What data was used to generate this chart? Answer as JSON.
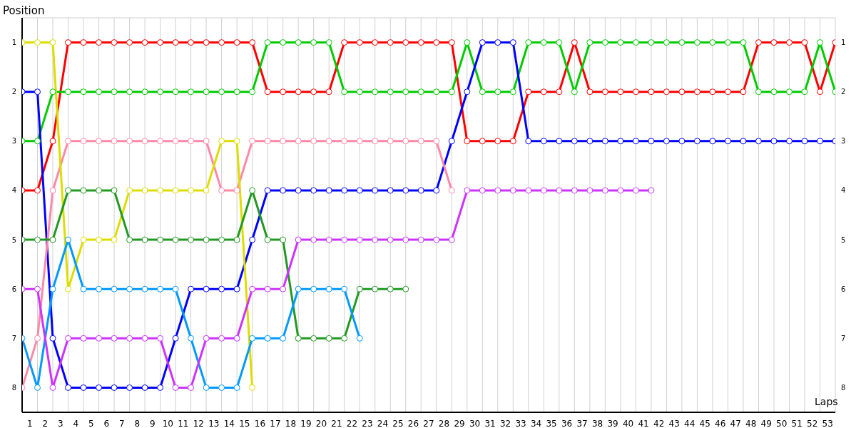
{
  "chart_data": {
    "type": "line",
    "xlabel": "Laps",
    "ylabel": "Position",
    "marker": "circle",
    "line_style": "solid",
    "grid": true,
    "x": [
      0,
      1,
      2,
      3,
      4,
      5,
      6,
      7,
      8,
      9,
      10,
      11,
      12,
      13,
      14,
      15,
      16,
      17,
      18,
      19,
      20,
      21,
      22,
      23,
      24,
      25,
      26,
      27,
      28,
      29,
      30,
      31,
      32,
      33,
      34,
      35,
      36,
      37,
      38,
      39,
      40,
      41,
      42,
      43,
      44,
      45,
      46,
      47,
      48,
      49,
      50,
      51,
      52,
      53
    ],
    "xlim": [
      0,
      53
    ],
    "xticks": [
      {
        "value": 1,
        "label": null
      },
      {
        "value": 2,
        "label": null
      },
      {
        "value": 3,
        "label": null
      },
      {
        "value": 4,
        "label": null
      },
      {
        "value": 5,
        "label": null
      },
      {
        "value": 6,
        "label": null
      },
      {
        "value": 7,
        "label": null
      },
      {
        "value": 8,
        "label": null
      },
      {
        "value": 9,
        "label": null
      },
      {
        "value": 10,
        "label": null
      },
      {
        "value": 11,
        "label": null
      },
      {
        "value": 12,
        "label": null
      },
      {
        "value": 13,
        "label": null
      },
      {
        "value": 14,
        "label": null
      },
      {
        "value": 15,
        "label": null
      },
      {
        "value": 16,
        "label": null
      },
      {
        "value": 17,
        "label": null
      },
      {
        "value": 18,
        "label": null
      },
      {
        "value": 19,
        "label": null
      },
      {
        "value": 20,
        "label": null
      },
      {
        "value": 21,
        "label": null
      },
      {
        "value": 22,
        "label": null
      },
      {
        "value": 23,
        "label": null
      },
      {
        "value": 24,
        "label": null
      },
      {
        "value": 25,
        "label": null
      },
      {
        "value": 26,
        "label": null
      },
      {
        "value": 27,
        "label": null
      },
      {
        "value": 28,
        "label": null
      },
      {
        "value": 29,
        "label": null
      },
      {
        "value": 30,
        "label": null
      },
      {
        "value": 31,
        "label": null
      },
      {
        "value": 32,
        "label": null
      },
      {
        "value": 33,
        "label": null
      },
      {
        "value": 34,
        "label": null
      },
      {
        "value": 35,
        "label": null
      },
      {
        "value": 36,
        "label": null
      },
      {
        "value": 37,
        "label": null
      },
      {
        "value": 38,
        "label": null
      },
      {
        "value": 39,
        "label": null
      },
      {
        "value": 40,
        "label": null
      },
      {
        "value": 41,
        "label": null
      },
      {
        "value": 42,
        "label": null
      },
      {
        "value": 43,
        "label": null
      },
      {
        "value": 44,
        "label": null
      },
      {
        "value": 45,
        "label": null
      },
      {
        "value": 46,
        "label": null
      },
      {
        "value": 47,
        "label": null
      },
      {
        "value": 48,
        "label": null
      },
      {
        "value": 49,
        "label": null
      },
      {
        "value": 50,
        "label": null
      },
      {
        "value": 51,
        "label": null
      },
      {
        "value": 52,
        "label": null
      },
      {
        "value": 53,
        "label": null
      },
      {
        "value": 0.5,
        "label": "1"
      },
      {
        "value": 1.5,
        "label": "2"
      },
      {
        "value": 2.5,
        "label": "3"
      },
      {
        "value": 3.5,
        "label": "4"
      },
      {
        "value": 4.5,
        "label": "5"
      },
      {
        "value": 5.5,
        "label": "6"
      },
      {
        "value": 6.5,
        "label": "7"
      },
      {
        "value": 7.5,
        "label": "8"
      },
      {
        "value": 8.5,
        "label": "9"
      },
      {
        "value": 9.5,
        "label": "10"
      },
      {
        "value": 10.5,
        "label": "11"
      },
      {
        "value": 11.5,
        "label": "12"
      },
      {
        "value": 12.5,
        "label": "13"
      },
      {
        "value": 13.5,
        "label": "14"
      },
      {
        "value": 14.5,
        "label": "15"
      },
      {
        "value": 15.5,
        "label": "16"
      },
      {
        "value": 16.5,
        "label": "17"
      },
      {
        "value": 17.5,
        "label": "18"
      },
      {
        "value": 18.5,
        "label": "19"
      },
      {
        "value": 19.5,
        "label": "20"
      },
      {
        "value": 20.5,
        "label": "21"
      },
      {
        "value": 21.5,
        "label": "22"
      },
      {
        "value": 22.5,
        "label": "23"
      },
      {
        "value": 23.5,
        "label": "24"
      },
      {
        "value": 24.5,
        "label": "25"
      },
      {
        "value": 25.5,
        "label": "26"
      },
      {
        "value": 26.5,
        "label": "27"
      },
      {
        "value": 27.5,
        "label": "28"
      },
      {
        "value": 28.5,
        "label": "29"
      },
      {
        "value": 29.5,
        "label": "30"
      },
      {
        "value": 30.5,
        "label": "31"
      },
      {
        "value": 31.5,
        "label": "32"
      },
      {
        "value": 32.5,
        "label": "33"
      },
      {
        "value": 33.5,
        "label": "34"
      },
      {
        "value": 34.5,
        "label": "35"
      },
      {
        "value": 35.5,
        "label": "36"
      },
      {
        "value": 36.5,
        "label": "37"
      },
      {
        "value": 37.5,
        "label": "38"
      },
      {
        "value": 38.5,
        "label": "39"
      },
      {
        "value": 39.5,
        "label": "40"
      },
      {
        "value": 40.5,
        "label": "41"
      },
      {
        "value": 41.5,
        "label": "42"
      },
      {
        "value": 42.5,
        "label": "43"
      },
      {
        "value": 43.5,
        "label": "44"
      },
      {
        "value": 44.5,
        "label": "45"
      },
      {
        "value": 45.5,
        "label": "46"
      },
      {
        "value": 46.5,
        "label": "47"
      },
      {
        "value": 47.5,
        "label": "48"
      },
      {
        "value": 48.5,
        "label": "49"
      },
      {
        "value": 49.5,
        "label": "50"
      },
      {
        "value": 50.5,
        "label": "51"
      },
      {
        "value": 51.5,
        "label": "52"
      },
      {
        "value": 52.5,
        "label": "53"
      }
    ],
    "ylim": [
      8.5,
      0.5
    ],
    "yticks": [
      1,
      2,
      3,
      4,
      5,
      6,
      7,
      8
    ],
    "y2lim": [
      8.5,
      0.5
    ],
    "y2ticks": [
      1,
      2,
      3,
      4,
      5,
      6,
      7,
      8
    ],
    "series": [
      {
        "color": "#ff0000",
        "values": [
          4,
          4,
          3,
          1,
          1,
          1,
          1,
          1,
          1,
          1,
          1,
          1,
          1,
          1,
          1,
          1,
          2,
          2,
          2,
          2,
          2,
          1,
          1,
          1,
          1,
          1,
          1,
          1,
          1,
          3,
          3,
          3,
          3,
          2,
          2,
          2,
          1,
          2,
          2,
          2,
          2,
          2,
          2,
          2,
          2,
          2,
          2,
          2,
          1,
          1,
          1,
          1,
          2,
          1
        ]
      },
      {
        "color": "#00cc00",
        "values": [
          3,
          3,
          2,
          2,
          2,
          2,
          2,
          2,
          2,
          2,
          2,
          2,
          2,
          2,
          2,
          2,
          1,
          1,
          1,
          1,
          1,
          2,
          2,
          2,
          2,
          2,
          2,
          2,
          2,
          1,
          2,
          2,
          2,
          1,
          1,
          1,
          2,
          1,
          1,
          1,
          1,
          1,
          1,
          1,
          1,
          1,
          1,
          1,
          2,
          2,
          2,
          2,
          1,
          2
        ]
      },
      {
        "color": "#0000ff",
        "values": [
          2,
          2,
          7,
          8,
          8,
          8,
          8,
          8,
          8,
          8,
          7,
          6,
          6,
          6,
          6,
          5,
          4,
          4,
          4,
          4,
          4,
          4,
          4,
          4,
          4,
          4,
          4,
          4,
          3,
          2,
          1,
          1,
          1,
          3,
          3,
          3,
          3,
          3,
          3,
          3,
          3,
          3,
          3,
          3,
          3,
          3,
          3,
          3,
          3,
          3,
          3,
          3,
          3,
          3
        ]
      },
      {
        "color": "#ff88a8",
        "values": [
          8,
          7,
          4,
          3,
          3,
          3,
          3,
          3,
          3,
          3,
          3,
          3,
          3,
          4,
          4,
          3,
          3,
          3,
          3,
          3,
          3,
          3,
          3,
          3,
          3,
          3,
          3,
          3,
          4,
          null,
          null,
          null,
          null,
          null,
          null,
          null,
          null,
          null,
          null,
          null,
          null,
          null,
          null,
          null,
          null,
          null,
          null,
          null,
          null,
          null,
          null,
          null,
          null,
          null
        ]
      },
      {
        "color": "#dddd00",
        "values": [
          1,
          1,
          1,
          6,
          5,
          5,
          5,
          4,
          4,
          4,
          4,
          4,
          4,
          3,
          3,
          8,
          null,
          null,
          null,
          null,
          null,
          null,
          null,
          null,
          null,
          null,
          null,
          null,
          null,
          null,
          null,
          null,
          null,
          null,
          null,
          null,
          null,
          null,
          null,
          null,
          null,
          null,
          null,
          null,
          null,
          null,
          null,
          null,
          null,
          null,
          null,
          null,
          null,
          null
        ]
      },
      {
        "color": "#229922",
        "values": [
          5,
          5,
          5,
          4,
          4,
          4,
          4,
          5,
          5,
          5,
          5,
          5,
          5,
          5,
          5,
          4,
          5,
          5,
          7,
          7,
          7,
          7,
          6,
          6,
          6,
          6,
          null,
          null,
          null,
          null,
          null,
          null,
          null,
          null,
          null,
          null,
          null,
          null,
          null,
          null,
          null,
          null,
          null,
          null,
          null,
          null,
          null,
          null,
          null,
          null,
          null,
          null,
          null,
          null
        ]
      },
      {
        "color": "#0099ff",
        "values": [
          7,
          8,
          6,
          5,
          6,
          6,
          6,
          6,
          6,
          6,
          6,
          7,
          8,
          8,
          8,
          7,
          7,
          7,
          6,
          6,
          6,
          6,
          7,
          null,
          null,
          null,
          null,
          null,
          null,
          null,
          null,
          null,
          null,
          null,
          null,
          null,
          null,
          null,
          null,
          null,
          null,
          null,
          null,
          null,
          null,
          null,
          null,
          null,
          null,
          null,
          null,
          null,
          null,
          null
        ]
      },
      {
        "color": "#cc33ff",
        "values": [
          6,
          6,
          8,
          7,
          7,
          7,
          7,
          7,
          7,
          7,
          8,
          8,
          7,
          7,
          7,
          6,
          6,
          6,
          5,
          5,
          5,
          5,
          5,
          5,
          5,
          5,
          5,
          5,
          5,
          4,
          4,
          4,
          4,
          4,
          4,
          4,
          4,
          4,
          4,
          4,
          4,
          4,
          null,
          null,
          null,
          null,
          null,
          null,
          null,
          null,
          null,
          null,
          null,
          null
        ]
      }
    ]
  }
}
